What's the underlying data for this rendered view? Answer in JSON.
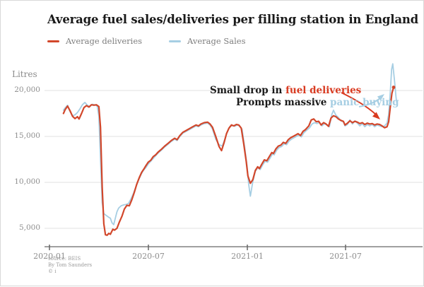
{
  "title": "Average fuel sales/deliveries per filling station in England",
  "annotation": {
    "line1_black": "Small drop in ",
    "line1_red": "fuel deliveries",
    "line2_black": "Prompts massive ",
    "line2_blue": "panic buying"
  },
  "credits": {
    "source": "source: BEIS",
    "byline": "By Tom Saunders",
    "logo": "© i"
  },
  "colors": {
    "deliveries_red": "#d2472b",
    "sales_blue": "#a6cee3",
    "annotation_red": "#d93a20",
    "annotation_blue": "#a6cee3",
    "title_text": "#1a1a1a",
    "axis_text": "#8c8c8c",
    "gridline": "#e0e0e0",
    "axis_line": "#a0a0a0"
  },
  "chart_data": {
    "type": "line",
    "title": "Average fuel sales/deliveries per filling station in England",
    "ylabel": "Litres",
    "xlabel": "",
    "x_unit": "months since 2020-01",
    "ylim": [
      2500,
      23500
    ],
    "grid": "horizontal",
    "legend_position": "top-left",
    "y_ticks": [
      "20,000",
      "15,000",
      "10,000",
      "5,000"
    ],
    "y_tick_values": [
      20000,
      15000,
      10000,
      5000
    ],
    "x_ticks": [
      "2020-01",
      "2020-07",
      "2021-01",
      "2021-07"
    ],
    "x_tick_months": [
      0,
      6,
      12,
      18
    ],
    "series": [
      {
        "name": "Average Sales",
        "color": "#a6cee3",
        "points": [
          [
            0.85,
            17850
          ],
          [
            0.95,
            18100
          ],
          [
            1.1,
            18400
          ],
          [
            1.25,
            17700
          ],
          [
            1.4,
            17250
          ],
          [
            1.55,
            17350
          ],
          [
            1.7,
            17600
          ],
          [
            1.85,
            18000
          ],
          [
            2.0,
            18450
          ],
          [
            2.15,
            18700
          ],
          [
            2.3,
            18400
          ],
          [
            2.45,
            18250
          ],
          [
            2.6,
            18500
          ],
          [
            2.75,
            18450
          ],
          [
            2.9,
            18300
          ],
          [
            3.0,
            17200
          ],
          [
            3.1,
            12500
          ],
          [
            3.2,
            7800
          ],
          [
            3.3,
            6600
          ],
          [
            3.45,
            6400
          ],
          [
            3.6,
            6200
          ],
          [
            3.7,
            6100
          ],
          [
            3.8,
            5600
          ],
          [
            3.9,
            5400
          ],
          [
            4.0,
            6100
          ],
          [
            4.1,
            6800
          ],
          [
            4.2,
            7200
          ],
          [
            4.35,
            7450
          ],
          [
            4.5,
            7550
          ],
          [
            4.65,
            7600
          ],
          [
            4.8,
            7700
          ],
          [
            4.95,
            8200
          ],
          [
            5.1,
            8800
          ],
          [
            5.25,
            9500
          ],
          [
            5.4,
            10200
          ],
          [
            5.55,
            10800
          ],
          [
            5.7,
            11300
          ],
          [
            5.85,
            11600
          ],
          [
            6.0,
            12000
          ],
          [
            6.15,
            12300
          ],
          [
            6.3,
            12600
          ],
          [
            6.45,
            12900
          ],
          [
            6.6,
            13200
          ],
          [
            6.8,
            13500
          ],
          [
            7.0,
            13850
          ],
          [
            7.2,
            14150
          ],
          [
            7.4,
            14450
          ],
          [
            7.6,
            14700
          ],
          [
            7.75,
            14550
          ],
          [
            7.9,
            14950
          ],
          [
            8.1,
            15350
          ],
          [
            8.3,
            15550
          ],
          [
            8.5,
            15750
          ],
          [
            8.7,
            15950
          ],
          [
            8.9,
            16150
          ],
          [
            9.05,
            16050
          ],
          [
            9.2,
            16250
          ],
          [
            9.4,
            16400
          ],
          [
            9.6,
            16450
          ],
          [
            9.75,
            16250
          ],
          [
            9.9,
            15800
          ],
          [
            10.1,
            14700
          ],
          [
            10.3,
            14100
          ],
          [
            10.5,
            13950
          ],
          [
            10.65,
            14700
          ],
          [
            10.8,
            15500
          ],
          [
            10.95,
            16050
          ],
          [
            11.1,
            16200
          ],
          [
            11.25,
            16100
          ],
          [
            11.4,
            16250
          ],
          [
            11.55,
            16150
          ],
          [
            11.7,
            15750
          ],
          [
            11.85,
            13900
          ],
          [
            12.0,
            11800
          ],
          [
            12.1,
            9800
          ],
          [
            12.2,
            8500
          ],
          [
            12.35,
            10100
          ],
          [
            12.5,
            11200
          ],
          [
            12.65,
            11600
          ],
          [
            12.8,
            11400
          ],
          [
            12.95,
            11900
          ],
          [
            13.1,
            12300
          ],
          [
            13.25,
            12200
          ],
          [
            13.4,
            12650
          ],
          [
            13.55,
            13100
          ],
          [
            13.65,
            13000
          ],
          [
            13.8,
            13500
          ],
          [
            13.95,
            13800
          ],
          [
            14.1,
            13900
          ],
          [
            14.25,
            14200
          ],
          [
            14.4,
            14100
          ],
          [
            14.55,
            14500
          ],
          [
            14.7,
            14700
          ],
          [
            14.85,
            14850
          ],
          [
            15.0,
            15000
          ],
          [
            15.15,
            15150
          ],
          [
            15.3,
            14950
          ],
          [
            15.45,
            15400
          ],
          [
            15.6,
            15650
          ],
          [
            15.8,
            15950
          ],
          [
            15.95,
            16350
          ],
          [
            16.1,
            16500
          ],
          [
            16.25,
            16400
          ],
          [
            16.4,
            16550
          ],
          [
            16.55,
            16150
          ],
          [
            16.7,
            16400
          ],
          [
            16.85,
            16250
          ],
          [
            17.0,
            16050
          ],
          [
            17.15,
            17400
          ],
          [
            17.25,
            17850
          ],
          [
            17.4,
            17300
          ],
          [
            17.55,
            17050
          ],
          [
            17.7,
            16700
          ],
          [
            17.85,
            16600
          ],
          [
            17.95,
            16150
          ],
          [
            18.1,
            16300
          ],
          [
            18.25,
            16800
          ],
          [
            18.4,
            16350
          ],
          [
            18.55,
            16700
          ],
          [
            18.7,
            16450
          ],
          [
            18.85,
            16150
          ],
          [
            19.0,
            16400
          ],
          [
            19.15,
            16050
          ],
          [
            19.3,
            16300
          ],
          [
            19.45,
            16150
          ],
          [
            19.6,
            16300
          ],
          [
            19.75,
            16050
          ],
          [
            19.9,
            16250
          ],
          [
            20.05,
            16150
          ],
          [
            20.2,
            16050
          ],
          [
            20.35,
            16150
          ],
          [
            20.5,
            16450
          ],
          [
            20.6,
            17400
          ],
          [
            20.7,
            19800
          ],
          [
            20.78,
            22300
          ],
          [
            20.85,
            22900
          ],
          [
            20.95,
            21200
          ],
          [
            21.05,
            19200
          ],
          [
            21.1,
            18600
          ]
        ]
      },
      {
        "name": "Average deliveries",
        "color": "#d2472b",
        "points": [
          [
            0.85,
            17500
          ],
          [
            0.95,
            17900
          ],
          [
            1.1,
            18300
          ],
          [
            1.25,
            17800
          ],
          [
            1.4,
            17200
          ],
          [
            1.55,
            16950
          ],
          [
            1.7,
            17150
          ],
          [
            1.8,
            16900
          ],
          [
            1.95,
            17500
          ],
          [
            2.1,
            18150
          ],
          [
            2.25,
            18350
          ],
          [
            2.4,
            18200
          ],
          [
            2.55,
            18450
          ],
          [
            2.7,
            18400
          ],
          [
            2.85,
            18450
          ],
          [
            3.0,
            18250
          ],
          [
            3.1,
            16000
          ],
          [
            3.2,
            9500
          ],
          [
            3.3,
            5500
          ],
          [
            3.4,
            4300
          ],
          [
            3.5,
            4250
          ],
          [
            3.6,
            4450
          ],
          [
            3.7,
            4350
          ],
          [
            3.85,
            4900
          ],
          [
            3.95,
            4800
          ],
          [
            4.1,
            5000
          ],
          [
            4.25,
            5700
          ],
          [
            4.4,
            6300
          ],
          [
            4.55,
            7100
          ],
          [
            4.7,
            7500
          ],
          [
            4.85,
            7450
          ],
          [
            5.0,
            8100
          ],
          [
            5.15,
            8900
          ],
          [
            5.3,
            9800
          ],
          [
            5.45,
            10500
          ],
          [
            5.6,
            11100
          ],
          [
            5.75,
            11500
          ],
          [
            5.85,
            11800
          ],
          [
            6.0,
            12200
          ],
          [
            6.15,
            12400
          ],
          [
            6.3,
            12800
          ],
          [
            6.45,
            13000
          ],
          [
            6.6,
            13300
          ],
          [
            6.8,
            13600
          ],
          [
            7.0,
            13950
          ],
          [
            7.2,
            14250
          ],
          [
            7.4,
            14550
          ],
          [
            7.6,
            14800
          ],
          [
            7.75,
            14650
          ],
          [
            7.9,
            15050
          ],
          [
            8.1,
            15450
          ],
          [
            8.3,
            15650
          ],
          [
            8.5,
            15850
          ],
          [
            8.7,
            16050
          ],
          [
            8.9,
            16250
          ],
          [
            9.05,
            16150
          ],
          [
            9.2,
            16350
          ],
          [
            9.4,
            16500
          ],
          [
            9.6,
            16550
          ],
          [
            9.75,
            16350
          ],
          [
            9.9,
            16000
          ],
          [
            10.1,
            15000
          ],
          [
            10.3,
            13900
          ],
          [
            10.45,
            13450
          ],
          [
            10.6,
            14300
          ],
          [
            10.75,
            15300
          ],
          [
            10.9,
            15900
          ],
          [
            11.05,
            16250
          ],
          [
            11.2,
            16150
          ],
          [
            11.35,
            16300
          ],
          [
            11.5,
            16250
          ],
          [
            11.65,
            15900
          ],
          [
            11.8,
            14200
          ],
          [
            11.95,
            12300
          ],
          [
            12.05,
            10700
          ],
          [
            12.2,
            9900
          ],
          [
            12.35,
            10300
          ],
          [
            12.5,
            11300
          ],
          [
            12.65,
            11700
          ],
          [
            12.75,
            11500
          ],
          [
            12.9,
            12000
          ],
          [
            13.05,
            12450
          ],
          [
            13.2,
            12350
          ],
          [
            13.35,
            12800
          ],
          [
            13.5,
            13250
          ],
          [
            13.6,
            13150
          ],
          [
            13.75,
            13650
          ],
          [
            13.9,
            13950
          ],
          [
            14.05,
            14050
          ],
          [
            14.2,
            14350
          ],
          [
            14.35,
            14250
          ],
          [
            14.5,
            14650
          ],
          [
            14.65,
            14850
          ],
          [
            14.8,
            15000
          ],
          [
            14.95,
            15150
          ],
          [
            15.1,
            15300
          ],
          [
            15.25,
            15100
          ],
          [
            15.4,
            15550
          ],
          [
            15.55,
            15750
          ],
          [
            15.75,
            16150
          ],
          [
            15.9,
            16800
          ],
          [
            16.05,
            16900
          ],
          [
            16.2,
            16600
          ],
          [
            16.35,
            16650
          ],
          [
            16.5,
            16250
          ],
          [
            16.65,
            16500
          ],
          [
            16.8,
            16350
          ],
          [
            16.95,
            16100
          ],
          [
            17.1,
            17000
          ],
          [
            17.25,
            17250
          ],
          [
            17.4,
            17150
          ],
          [
            17.55,
            16900
          ],
          [
            17.7,
            16750
          ],
          [
            17.85,
            16650
          ],
          [
            17.95,
            16250
          ],
          [
            18.1,
            16450
          ],
          [
            18.25,
            16700
          ],
          [
            18.4,
            16500
          ],
          [
            18.55,
            16650
          ],
          [
            18.7,
            16550
          ],
          [
            18.85,
            16400
          ],
          [
            19.0,
            16500
          ],
          [
            19.15,
            16300
          ],
          [
            19.3,
            16450
          ],
          [
            19.45,
            16350
          ],
          [
            19.6,
            16400
          ],
          [
            19.75,
            16250
          ],
          [
            19.9,
            16350
          ],
          [
            20.05,
            16300
          ],
          [
            20.2,
            16150
          ],
          [
            20.35,
            15950
          ],
          [
            20.5,
            16050
          ],
          [
            20.6,
            16600
          ],
          [
            20.7,
            18200
          ],
          [
            20.8,
            19700
          ],
          [
            20.9,
            20350
          ]
        ]
      }
    ],
    "annotations": [
      {
        "text": "Small drop in fuel deliveries",
        "points_to": "deliveries dip ~15,950 litres, Sep 2021"
      },
      {
        "text": "Prompts massive panic buying",
        "points_to": "sales spike ~22,900 litres, late Sep 2021"
      }
    ]
  }
}
